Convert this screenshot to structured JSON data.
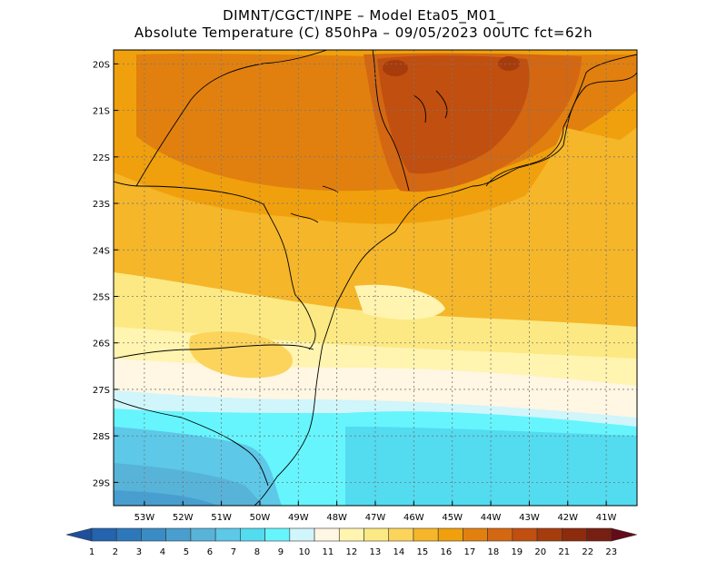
{
  "header": {
    "line1": "DIMNT/CGCT/INPE –  Model Eta05_M01_",
    "line2": "Absolute Temperature (C) 850hPa –  09/05/2023 00UTC fct=62h"
  },
  "map": {
    "lat_labels": [
      "20S",
      "21S",
      "22S",
      "23S",
      "24S",
      "25S",
      "26S",
      "27S",
      "28S",
      "29S"
    ],
    "lon_labels": [
      "53W",
      "52W",
      "51W",
      "50W",
      "49W",
      "48W",
      "47W",
      "46W",
      "45W",
      "44W",
      "43W",
      "42W",
      "41W"
    ],
    "lat_range": [
      -29.5,
      -19.7
    ],
    "lon_range": [
      -53.8,
      -40.2
    ]
  },
  "colorbar": {
    "labels": [
      "1",
      "2",
      "3",
      "4",
      "5",
      "6",
      "7",
      "8",
      "9",
      "10",
      "11",
      "12",
      "13",
      "14",
      "15",
      "16",
      "17",
      "18",
      "19",
      "20",
      "21",
      "22",
      "23"
    ],
    "colors": [
      "#1d4f9c",
      "#2463ad",
      "#2d78bb",
      "#3a8cc6",
      "#489fcf",
      "#58b3d9",
      "#5dc8e8",
      "#53dbf0",
      "#66f5fd",
      "#d0f5fb",
      "#fff6e3",
      "#fff4b0",
      "#fce983",
      "#fcd45c",
      "#f5b629",
      "#f0a00c",
      "#e1800f",
      "#d46712",
      "#c14f0f",
      "#a63c0c",
      "#8d2b0d",
      "#761f12",
      "#640a19"
    ]
  }
}
